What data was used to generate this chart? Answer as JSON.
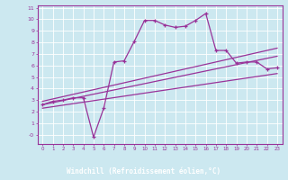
{
  "background_color": "#cce8f0",
  "grid_color": "#ffffff",
  "line_color": "#993399",
  "xlabel": "Windchill (Refroidissement éolien,°C)",
  "xlabel_bg": "#993399",
  "xlabel_fg": "#ffffff",
  "xlim": [
    -0.5,
    23.5
  ],
  "ylim": [
    -0.8,
    11.2
  ],
  "xticks": [
    0,
    1,
    2,
    3,
    4,
    5,
    6,
    7,
    8,
    9,
    10,
    11,
    12,
    13,
    14,
    15,
    16,
    17,
    18,
    19,
    20,
    21,
    22,
    23
  ],
  "yticks": [
    0,
    1,
    2,
    3,
    4,
    5,
    6,
    7,
    8,
    9,
    10,
    11
  ],
  "line1_x": [
    0,
    1,
    2,
    3,
    4,
    5,
    6,
    7,
    8,
    9,
    10,
    11,
    12,
    13,
    14,
    15,
    16,
    17,
    18,
    19,
    20,
    21,
    22,
    23
  ],
  "line1_y": [
    2.6,
    2.9,
    3.0,
    3.2,
    3.2,
    -0.2,
    2.3,
    6.3,
    6.4,
    8.1,
    9.9,
    9.9,
    9.5,
    9.3,
    9.4,
    9.9,
    10.5,
    7.3,
    7.3,
    6.2,
    6.3,
    6.3,
    5.7,
    5.8
  ],
  "line2_x": [
    0,
    23
  ],
  "line2_y": [
    2.6,
    6.8
  ],
  "line3_x": [
    0,
    23
  ],
  "line3_y": [
    2.9,
    7.5
  ],
  "line4_x": [
    0,
    23
  ],
  "line4_y": [
    2.3,
    5.3
  ]
}
